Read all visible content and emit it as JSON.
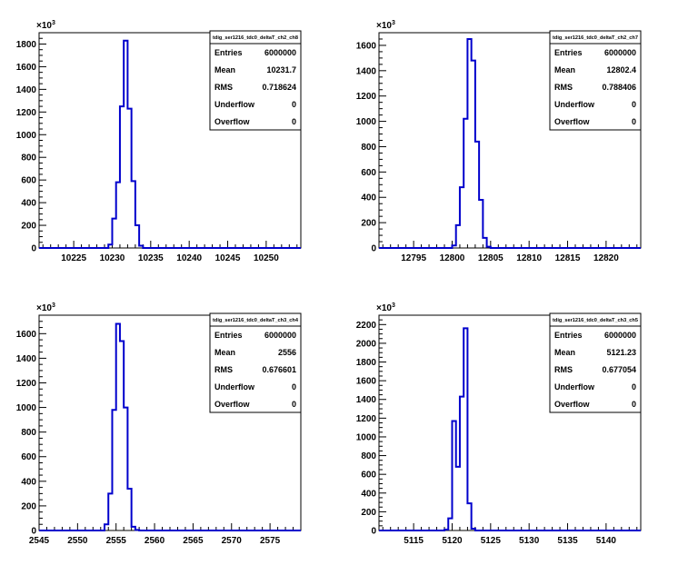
{
  "chart_data": [
    {
      "type": "bar",
      "title": "tdig_ser1216_tdc0_deltaT_ch2_ch8",
      "y_multiplier_label": "×10",
      "y_multiplier_exp": "3",
      "xlim": [
        10220.5,
        10254.5
      ],
      "ylim": [
        0,
        1900
      ],
      "xticks": [
        10225,
        10230,
        10235,
        10240,
        10245,
        10250
      ],
      "yticks": [
        0,
        200,
        400,
        600,
        800,
        1000,
        1200,
        1400,
        1600,
        1800
      ],
      "bin_width": 0.5,
      "bins_lo": [
        10229,
        10229.5,
        10230,
        10230.5,
        10231,
        10231.5,
        10232,
        10232.5,
        10233,
        10233.5,
        10234
      ],
      "values": [
        0,
        30,
        260,
        580,
        1250,
        1830,
        1230,
        590,
        200,
        20,
        0
      ],
      "stats": [
        {
          "label": "Entries",
          "value": "6000000"
        },
        {
          "label": "Mean",
          "value": "10231.7"
        },
        {
          "label": "RMS",
          "value": "0.718624"
        },
        {
          "label": "Underflow",
          "value": "0"
        },
        {
          "label": "Overflow",
          "value": "0"
        }
      ]
    },
    {
      "type": "bar",
      "title": "tdig_ser1216_tdc0_deltaT_ch2_ch7",
      "y_multiplier_label": "×10",
      "y_multiplier_exp": "3",
      "xlim": [
        12790.5,
        12824.5
      ],
      "ylim": [
        0,
        1700
      ],
      "xticks": [
        12795,
        12800,
        12805,
        12810,
        12815,
        12820
      ],
      "yticks": [
        0,
        200,
        400,
        600,
        800,
        1000,
        1200,
        1400,
        1600
      ],
      "bin_width": 0.5,
      "bins_lo": [
        12800,
        12800.5,
        12801,
        12801.5,
        12802,
        12802.5,
        12803,
        12803.5,
        12804,
        12804.5,
        12805
      ],
      "values": [
        20,
        180,
        480,
        1020,
        1650,
        1480,
        840,
        380,
        80,
        10,
        0
      ],
      "stats": [
        {
          "label": "Entries",
          "value": "6000000"
        },
        {
          "label": "Mean",
          "value": "12802.4"
        },
        {
          "label": "RMS",
          "value": "0.788406"
        },
        {
          "label": "Underflow",
          "value": "0"
        },
        {
          "label": "Overflow",
          "value": "0"
        }
      ]
    },
    {
      "type": "bar",
      "title": "tdig_ser1216_tdc0_deltaT_ch3_ch4",
      "y_multiplier_label": "×10",
      "y_multiplier_exp": "3",
      "xlim": [
        2545,
        2579
      ],
      "ylim": [
        0,
        1750
      ],
      "xticks": [
        2545,
        2550,
        2555,
        2560,
        2565,
        2570,
        2575
      ],
      "yticks": [
        0,
        200,
        400,
        600,
        800,
        1000,
        1200,
        1400,
        1600
      ],
      "bin_width": 0.5,
      "bins_lo": [
        2553.5,
        2554,
        2554.5,
        2555,
        2555.5,
        2556,
        2556.5,
        2557,
        2557.5,
        2558
      ],
      "values": [
        50,
        300,
        980,
        1680,
        1540,
        1000,
        340,
        30,
        5,
        0
      ],
      "stats": [
        {
          "label": "Entries",
          "value": "6000000"
        },
        {
          "label": "Mean",
          "value": "2556"
        },
        {
          "label": "RMS",
          "value": "0.676601"
        },
        {
          "label": "Underflow",
          "value": "0"
        },
        {
          "label": "Overflow",
          "value": "0"
        }
      ]
    },
    {
      "type": "bar",
      "title": "tdig_ser1216_tdc0_deltaT_ch3_ch5",
      "y_multiplier_label": "×10",
      "y_multiplier_exp": "3",
      "xlim": [
        5110.5,
        5144.5
      ],
      "ylim": [
        0,
        2300
      ],
      "xticks": [
        5115,
        5120,
        5125,
        5130,
        5135,
        5140
      ],
      "yticks": [
        0,
        200,
        400,
        600,
        800,
        1000,
        1200,
        1400,
        1600,
        1800,
        2000,
        2200
      ],
      "bin_width": 0.5,
      "bins_lo": [
        5119,
        5119.5,
        5120,
        5120.5,
        5121,
        5121.5,
        5122,
        5122.5,
        5123
      ],
      "values": [
        10,
        130,
        1170,
        680,
        1430,
        2160,
        290,
        20,
        0
      ],
      "stats": [
        {
          "label": "Entries",
          "value": "6000000"
        },
        {
          "label": "Mean",
          "value": "5121.23"
        },
        {
          "label": "RMS",
          "value": "0.677054"
        },
        {
          "label": "Underflow",
          "value": "0"
        },
        {
          "label": "Overflow",
          "value": "0"
        }
      ]
    }
  ]
}
